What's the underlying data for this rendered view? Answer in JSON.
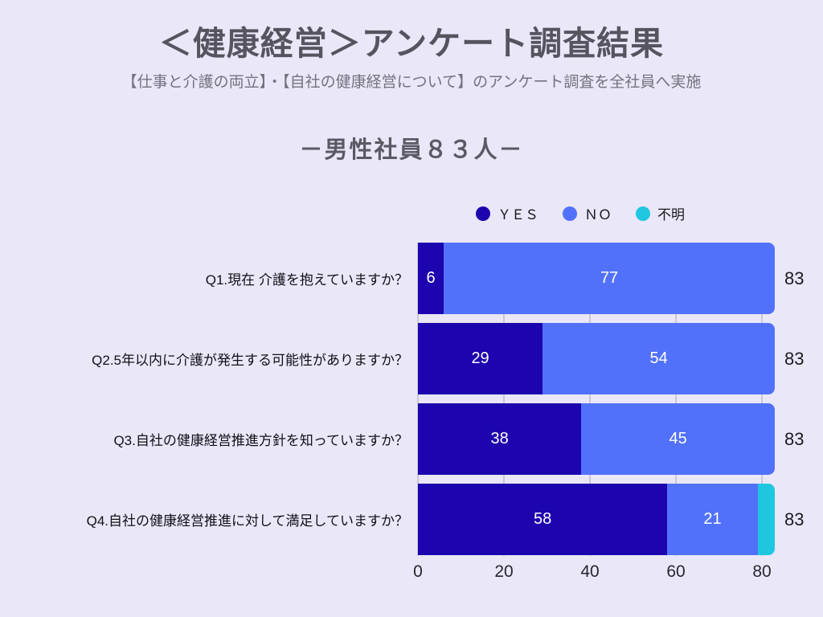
{
  "page": {
    "title": "＜健康経営＞アンケート調査結果",
    "subtitle": "【仕事と介護の両立】・【自社の健康経営について】のアンケート調査を全社員へ実施",
    "section_title": "－男性社員８３人－"
  },
  "colors": {
    "background": "#eae7f8",
    "yes": "#1c04ae",
    "no": "#5271fb",
    "unknown": "#1ec7df",
    "grid": "#c9c8d6",
    "title_text": "#55545f",
    "subtitle_text": "#73727f"
  },
  "chart_data": {
    "type": "bar",
    "orientation": "horizontal",
    "stacked": true,
    "title": "－男性社員８３人－",
    "categories": [
      "Q1.現在 介護を抱えていますか？",
      "Q2.5年以内に介護が発生する可能性がありますか？",
      "Q3.自社の健康経営推進方針を知っていますか？",
      "Q4.自社の健康経営推進に対して満足していますか？"
    ],
    "series": [
      {
        "name": "ＹＥＳ",
        "color": "#1c04ae",
        "values": [
          6,
          29,
          38,
          58
        ]
      },
      {
        "name": "ＮＯ",
        "color": "#5271fb",
        "values": [
          77,
          54,
          45,
          21
        ]
      },
      {
        "name": "不明",
        "color": "#1ec7df",
        "values": [
          0,
          0,
          0,
          4
        ]
      }
    ],
    "totals": [
      83,
      83,
      83,
      83
    ],
    "xticks": [
      0,
      20,
      40,
      60,
      80
    ],
    "xlim": [
      0,
      83
    ],
    "grid": true,
    "legend_position": "top-right"
  }
}
